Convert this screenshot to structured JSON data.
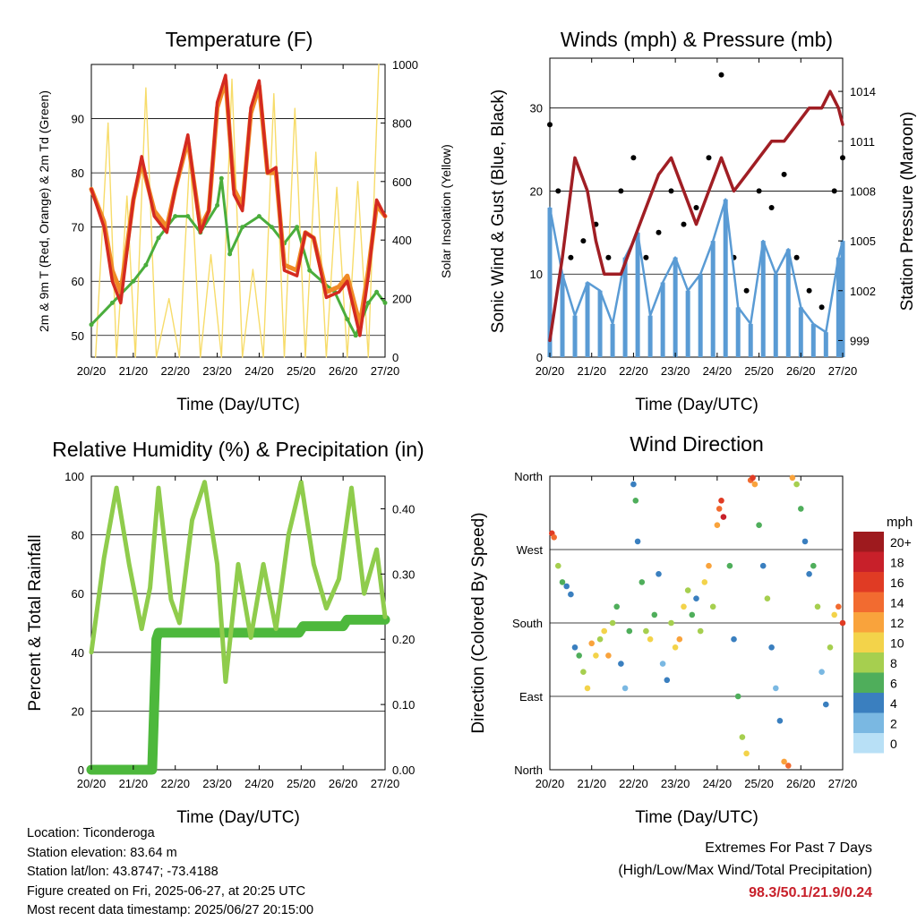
{
  "colors": {
    "temp_2m": "#d42a20",
    "temp_9m": "#f08a26",
    "dewpoint": "#4aad3c",
    "insolation": "#f7dc6a",
    "wind": "#5a9bd4",
    "gust": "#000000",
    "pressure": "#a01e24",
    "rh": "#8fcc4c",
    "precip": "#4db83c",
    "extremes": "#c8202a"
  },
  "x_ticks": [
    "20/20",
    "21/20",
    "22/20",
    "23/20",
    "24/20",
    "25/20",
    "26/20",
    "27/20"
  ],
  "x_label": "Time (Day/UTC)",
  "panels": {
    "temperature": {
      "title": "Temperature (F)",
      "y_left_label": "2m & 9m T (Red, Orange) & 2m Td (Green)",
      "y_right_label": "Solar Insolation (Yellow)",
      "y_left_ticks": [
        "50",
        "60",
        "70",
        "80",
        "90"
      ],
      "y_right_ticks": [
        "0",
        "200",
        "400",
        "600",
        "800",
        "1000"
      ]
    },
    "winds": {
      "title": "Winds (mph) & Pressure (mb)",
      "y_left_label": "Sonic Wind & Gust (Blue, Black)",
      "y_right_label": "Station Pressure (Maroon)",
      "y_left_ticks": [
        "0",
        "10",
        "20",
        "30"
      ],
      "y_right_ticks": [
        "999",
        "1002",
        "1005",
        "1008",
        "1011",
        "1014"
      ]
    },
    "humidity": {
      "title": "Relative Humidity (%) & Precipitation (in)",
      "y_left_label": "Percent & Total Rainfall",
      "y_left_ticks": [
        "0",
        "20",
        "40",
        "60",
        "80",
        "100"
      ],
      "y_right_ticks": [
        "0.00",
        "0.10",
        "0.20",
        "0.30",
        "0.40"
      ]
    },
    "direction": {
      "title": "Wind Direction",
      "y_left_label": "Direction (Colored By Speed)",
      "y_left_ticks": [
        "North",
        "East",
        "South",
        "West",
        "North"
      ],
      "legend_title": "mph",
      "legend_labels": [
        "20+",
        "18",
        "16",
        "14",
        "12",
        "10",
        "8",
        "6",
        "4",
        "2",
        "0"
      ],
      "legend_colors": [
        "#9e1a1e",
        "#c8202a",
        "#e03b24",
        "#f26b30",
        "#f9a33c",
        "#f3d34a",
        "#a6cf4f",
        "#4fae5b",
        "#3a7fbf",
        "#7ab8e2",
        "#b8e0f6"
      ]
    }
  },
  "footer": {
    "location": "Location: Ticonderoga",
    "elevation": "Station elevation: 83.64 m",
    "latlon": "Station lat/lon: 43.8747; -73.4188",
    "created": "Figure created on Fri, 2025-06-27, at 20:25 UTC",
    "recent": "Most recent data timestamp: 2025/06/27 20:15:00",
    "extremes_title": "Extremes For Past 7 Days",
    "extremes_sub": "(High/Low/Max Wind/Total Precipitation)",
    "extremes_values": "98.3/50.1/21.9/0.24"
  },
  "chart_data": [
    {
      "type": "line",
      "title": "Temperature (F)",
      "xlabel": "Time (Day/UTC)",
      "ylabel": "2m & 9m T (Red, Orange) & 2m Td (Green)",
      "y2label": "Solar Insolation (Yellow)",
      "xlim": [
        0,
        7
      ],
      "ylim": [
        46,
        100
      ],
      "y2lim": [
        0,
        1000
      ],
      "series": [
        {
          "name": "2m T",
          "axis": "left",
          "x": [
            0,
            0.3,
            0.5,
            0.7,
            1.0,
            1.2,
            1.5,
            1.8,
            2.0,
            2.3,
            2.6,
            2.8,
            3.0,
            3.2,
            3.4,
            3.6,
            3.8,
            4.0,
            4.2,
            4.4,
            4.6,
            4.9,
            5.1,
            5.3,
            5.6,
            5.9,
            6.1,
            6.4,
            6.6,
            6.8,
            7.0
          ],
          "y": [
            77,
            70,
            60,
            56,
            75,
            83,
            72,
            69,
            77,
            87,
            69,
            73,
            93,
            98,
            76,
            73,
            92,
            97,
            80,
            81,
            62,
            61,
            69,
            68,
            57,
            58,
            60,
            50,
            61,
            75,
            72
          ]
        },
        {
          "name": "9m T",
          "axis": "left",
          "x": [
            0,
            0.3,
            0.5,
            0.7,
            1.0,
            1.2,
            1.5,
            1.8,
            2.0,
            2.3,
            2.6,
            2.8,
            3.0,
            3.2,
            3.4,
            3.6,
            3.8,
            4.0,
            4.2,
            4.4,
            4.6,
            4.9,
            5.1,
            5.3,
            5.6,
            5.9,
            6.1,
            6.4,
            6.6,
            6.8,
            7.0
          ],
          "y": [
            77,
            71,
            62,
            58,
            75,
            82,
            73,
            70,
            77,
            86,
            70,
            73,
            92,
            97,
            77,
            74,
            91,
            96,
            80,
            80,
            63,
            62,
            69,
            68,
            58,
            59,
            61,
            52,
            62,
            74,
            72
          ]
        },
        {
          "name": "2m Td",
          "axis": "left",
          "x": [
            0,
            0.5,
            1.0,
            1.3,
            1.6,
            2.0,
            2.3,
            2.6,
            3.0,
            3.1,
            3.3,
            3.6,
            4.0,
            4.3,
            4.6,
            4.9,
            5.2,
            5.5,
            5.8,
            6.1,
            6.3,
            6.6,
            6.8,
            7.0
          ],
          "y": [
            52,
            56,
            60,
            63,
            68,
            72,
            72,
            69,
            74,
            79,
            65,
            70,
            72,
            70,
            67,
            70,
            62,
            60,
            58,
            53,
            50,
            56,
            58,
            56
          ]
        },
        {
          "name": "Solar Insolation",
          "axis": "right",
          "x": [
            0.1,
            0.4,
            0.6,
            0.85,
            1.05,
            1.3,
            1.55,
            1.85,
            2.1,
            2.35,
            2.6,
            2.85,
            3.1,
            3.35,
            3.6,
            3.85,
            4.1,
            4.35,
            4.6,
            4.85,
            5.1,
            5.35,
            5.6,
            5.85,
            6.1,
            6.35,
            6.6,
            6.85
          ],
          "y": [
            0,
            800,
            0,
            550,
            0,
            920,
            0,
            200,
            0,
            700,
            0,
            350,
            0,
            950,
            0,
            300,
            0,
            900,
            0,
            850,
            0,
            700,
            0,
            580,
            0,
            600,
            0,
            1000
          ]
        }
      ]
    },
    {
      "type": "line",
      "title": "Winds (mph) & Pressure (mb)",
      "xlabel": "Time (Day/UTC)",
      "ylabel": "Sonic Wind & Gust (Blue, Black)",
      "y2label": "Station Pressure (Maroon)",
      "xlim": [
        0,
        7
      ],
      "ylim": [
        0,
        36
      ],
      "y2lim": [
        998,
        1016
      ],
      "series": [
        {
          "name": "Sonic Wind",
          "axis": "left",
          "x": [
            0,
            0.3,
            0.6,
            0.9,
            1.2,
            1.5,
            1.8,
            2.1,
            2.4,
            2.7,
            3.0,
            3.3,
            3.6,
            3.9,
            4.2,
            4.5,
            4.8,
            5.1,
            5.4,
            5.7,
            6.0,
            6.3,
            6.6,
            6.9,
            7.0
          ],
          "y": [
            18,
            10,
            5,
            9,
            8,
            4,
            12,
            15,
            5,
            9,
            12,
            8,
            10,
            14,
            19,
            6,
            4,
            14,
            10,
            13,
            6,
            4,
            3,
            12,
            14
          ]
        },
        {
          "name": "Gust",
          "axis": "left",
          "x": [
            0,
            0.2,
            0.5,
            0.8,
            1.1,
            1.4,
            1.7,
            2.0,
            2.3,
            2.6,
            2.9,
            3.2,
            3.5,
            3.8,
            4.1,
            4.4,
            4.7,
            5.0,
            5.3,
            5.6,
            5.9,
            6.2,
            6.5,
            6.8,
            7.0
          ],
          "y": [
            28,
            20,
            12,
            14,
            16,
            12,
            20,
            24,
            12,
            15,
            20,
            16,
            18,
            24,
            34,
            12,
            8,
            20,
            18,
            22,
            12,
            8,
            6,
            20,
            24
          ]
        },
        {
          "name": "Station Pressure",
          "axis": "right",
          "x": [
            0,
            0.3,
            0.6,
            0.9,
            1.1,
            1.3,
            1.5,
            1.7,
            2.0,
            2.3,
            2.6,
            2.9,
            3.2,
            3.5,
            3.8,
            4.1,
            4.4,
            4.7,
            5.0,
            5.3,
            5.6,
            5.9,
            6.2,
            6.5,
            6.7,
            6.9,
            7.0
          ],
          "y": [
            999,
            1004,
            1010,
            1008,
            1005,
            1003,
            1003,
            1003,
            1005,
            1007,
            1009,
            1010,
            1008,
            1006,
            1008,
            1010,
            1008,
            1009,
            1010,
            1011,
            1011,
            1012,
            1013,
            1013,
            1014,
            1013,
            1012
          ]
        }
      ]
    },
    {
      "type": "line",
      "title": "Relative Humidity (%) & Precipitation (in)",
      "xlabel": "Time (Day/UTC)",
      "ylabel": "Percent & Total Rainfall",
      "xlim": [
        0,
        7
      ],
      "ylim": [
        0,
        100
      ],
      "y2lim": [
        0,
        0.45
      ],
      "series": [
        {
          "name": "Relative Humidity",
          "axis": "left",
          "x": [
            0,
            0.3,
            0.6,
            0.9,
            1.2,
            1.4,
            1.6,
            1.9,
            2.1,
            2.4,
            2.7,
            3.0,
            3.2,
            3.5,
            3.8,
            4.1,
            4.4,
            4.7,
            5.0,
            5.3,
            5.6,
            5.9,
            6.2,
            6.5,
            6.8,
            7.0
          ],
          "y": [
            40,
            72,
            96,
            70,
            48,
            62,
            96,
            58,
            50,
            85,
            98,
            70,
            30,
            70,
            45,
            70,
            48,
            80,
            98,
            70,
            55,
            65,
            96,
            60,
            75,
            52
          ]
        },
        {
          "name": "Total Rainfall",
          "axis": "right",
          "x": [
            0,
            1.45,
            1.55,
            1.6,
            4.95,
            5.05,
            6.0,
            6.1,
            7.0
          ],
          "y": [
            0,
            0,
            0.2,
            0.21,
            0.21,
            0.22,
            0.22,
            0.23,
            0.23
          ]
        }
      ]
    },
    {
      "type": "scatter",
      "title": "Wind Direction",
      "xlabel": "Time (Day/UTC)",
      "ylabel": "Direction (Colored By Speed)",
      "xlim": [
        0,
        7
      ],
      "ylim": [
        0,
        360
      ],
      "y_tick_values": [
        0,
        90,
        180,
        270,
        360
      ],
      "points": [
        [
          0.05,
          290,
          16
        ],
        [
          0.1,
          285,
          14
        ],
        [
          0.2,
          250,
          8
        ],
        [
          0.3,
          230,
          6
        ],
        [
          0.4,
          225,
          4
        ],
        [
          0.5,
          215,
          4
        ],
        [
          0.6,
          150,
          4
        ],
        [
          0.7,
          140,
          6
        ],
        [
          0.8,
          120,
          8
        ],
        [
          0.9,
          100,
          10
        ],
        [
          1.0,
          155,
          12
        ],
        [
          1.1,
          140,
          10
        ],
        [
          1.2,
          160,
          8
        ],
        [
          1.3,
          170,
          10
        ],
        [
          1.4,
          140,
          12
        ],
        [
          1.5,
          180,
          8
        ],
        [
          1.6,
          200,
          6
        ],
        [
          1.7,
          130,
          4
        ],
        [
          1.8,
          100,
          2
        ],
        [
          1.9,
          170,
          6
        ],
        [
          2.0,
          350,
          4
        ],
        [
          2.05,
          330,
          6
        ],
        [
          2.1,
          280,
          4
        ],
        [
          2.2,
          230,
          6
        ],
        [
          2.3,
          170,
          8
        ],
        [
          2.4,
          160,
          10
        ],
        [
          2.5,
          190,
          6
        ],
        [
          2.6,
          240,
          4
        ],
        [
          2.7,
          130,
          2
        ],
        [
          2.8,
          110,
          4
        ],
        [
          2.9,
          180,
          8
        ],
        [
          3.0,
          150,
          10
        ],
        [
          3.1,
          160,
          12
        ],
        [
          3.2,
          200,
          10
        ],
        [
          3.3,
          220,
          8
        ],
        [
          3.4,
          190,
          6
        ],
        [
          3.5,
          210,
          4
        ],
        [
          3.6,
          170,
          8
        ],
        [
          3.7,
          230,
          10
        ],
        [
          3.8,
          250,
          12
        ],
        [
          3.9,
          200,
          8
        ],
        [
          4.0,
          300,
          12
        ],
        [
          4.05,
          320,
          14
        ],
        [
          4.1,
          330,
          16
        ],
        [
          4.15,
          310,
          18
        ],
        [
          4.3,
          250,
          6
        ],
        [
          4.4,
          160,
          4
        ],
        [
          4.5,
          90,
          6
        ],
        [
          4.6,
          40,
          8
        ],
        [
          4.7,
          20,
          10
        ],
        [
          4.8,
          355,
          14
        ],
        [
          4.85,
          358,
          16
        ],
        [
          4.9,
          350,
          12
        ],
        [
          5.0,
          300,
          6
        ],
        [
          5.1,
          250,
          4
        ],
        [
          5.2,
          210,
          8
        ],
        [
          5.3,
          150,
          4
        ],
        [
          5.4,
          100,
          2
        ],
        [
          5.5,
          60,
          4
        ],
        [
          5.6,
          10,
          12
        ],
        [
          5.7,
          5,
          14
        ],
        [
          5.8,
          358,
          12
        ],
        [
          5.9,
          350,
          8
        ],
        [
          6.0,
          320,
          6
        ],
        [
          6.1,
          280,
          4
        ],
        [
          6.2,
          240,
          4
        ],
        [
          6.3,
          250,
          6
        ],
        [
          6.4,
          200,
          8
        ],
        [
          6.5,
          120,
          2
        ],
        [
          6.6,
          80,
          4
        ],
        [
          6.7,
          150,
          8
        ],
        [
          6.8,
          190,
          10
        ],
        [
          6.9,
          200,
          14
        ],
        [
          7.0,
          180,
          16
        ]
      ]
    }
  ]
}
